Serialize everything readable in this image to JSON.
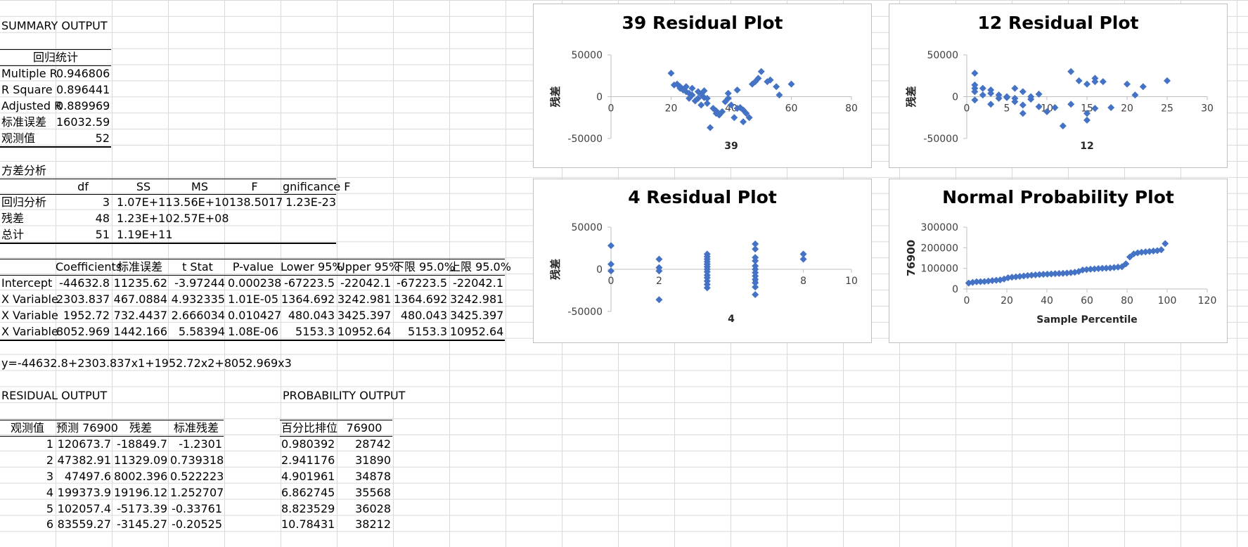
{
  "summary_title": "SUMMARY OUTPUT",
  "regression_stats": {
    "header": "回归统计",
    "rows": [
      {
        "label": "Multiple R",
        "value": "0.946806"
      },
      {
        "label": "R Square",
        "value": "0.896441"
      },
      {
        "label": "Adjusted R",
        "value": "0.889969"
      },
      {
        "label": "标准误差",
        "value": "16032.59"
      },
      {
        "label": "观测值",
        "value": "52"
      }
    ]
  },
  "anova": {
    "title": "方差分析",
    "headers": [
      "",
      "df",
      "SS",
      "MS",
      "F",
      "gnificance F"
    ],
    "rows": [
      [
        "回归分析",
        "3",
        "1.07E+11",
        "3.56E+10",
        "138.5017",
        "1.23E-23"
      ],
      [
        "残差",
        "48",
        "1.23E+10",
        "2.57E+08",
        "",
        ""
      ],
      [
        "总计",
        "51",
        "1.19E+11",
        "",
        "",
        ""
      ]
    ]
  },
  "coefficients": {
    "headers": [
      "",
      "Coefficients",
      "标准误差",
      "t Stat",
      "P-value",
      "Lower 95%",
      "Upper 95%",
      "下限 95.0%",
      "上限 95.0%"
    ],
    "rows": [
      [
        "Intercept",
        "-44632.8",
        "11235.62",
        "-3.97244",
        "0.000238",
        "-67223.5",
        "-22042.1",
        "-67223.5",
        "-22042.1"
      ],
      [
        "X Variable",
        "2303.837",
        "467.0884",
        "4.932335",
        "1.01E-05",
        "1364.692",
        "3242.981",
        "1364.692",
        "3242.981"
      ],
      [
        "X Variable",
        "1952.72",
        "732.4437",
        "2.666034",
        "0.010427",
        "480.043",
        "3425.397",
        "480.043",
        "3425.397"
      ],
      [
        "X Variable",
        "8052.969",
        "1442.166",
        "5.58394",
        "1.08E-06",
        "5153.3",
        "10952.64",
        "5153.3",
        "10952.64"
      ]
    ]
  },
  "equation": "y=-44632.8+2303.837x1+1952.72x2+8052.969x3",
  "residual_output": {
    "title": "RESIDUAL OUTPUT",
    "headers": [
      "观测值",
      "预测 76900",
      "残差",
      "标准残差"
    ],
    "rows": [
      [
        "1",
        "120673.7",
        "-18849.7",
        "-1.2301"
      ],
      [
        "2",
        "47382.91",
        "11329.09",
        "0.739318"
      ],
      [
        "3",
        "47497.6",
        "8002.396",
        "0.522223"
      ],
      [
        "4",
        "199373.9",
        "19196.12",
        "1.252707"
      ],
      [
        "5",
        "102057.4",
        "-5173.39",
        "-0.33761"
      ],
      [
        "6",
        "83559.27",
        "-3145.27",
        "-0.20525"
      ]
    ]
  },
  "probability_output": {
    "title": "PROBABILITY OUTPUT",
    "headers": [
      "百分比排位",
      "76900"
    ],
    "rows": [
      [
        "0.980392",
        "28742"
      ],
      [
        "2.941176",
        "31890"
      ],
      [
        "4.901961",
        "34878"
      ],
      [
        "6.862745",
        "35568"
      ],
      [
        "8.823529",
        "36028"
      ],
      [
        "10.78431",
        "38212"
      ]
    ]
  },
  "chart_data": [
    {
      "type": "scatter",
      "title": "39 Residual Plot",
      "xlabel": "39",
      "ylabel": "残差",
      "xlim": [
        0,
        80
      ],
      "ylim": [
        -50000,
        50000
      ],
      "xticks": [
        0,
        20,
        40,
        60,
        80
      ],
      "yticks": [
        -50000,
        0,
        50000
      ],
      "color": "#4472c4",
      "points": [
        [
          20,
          28000
        ],
        [
          21,
          14000
        ],
        [
          22,
          15000
        ],
        [
          23,
          12000
        ],
        [
          23,
          10000
        ],
        [
          24,
          8000
        ],
        [
          25,
          6000
        ],
        [
          25,
          12000
        ],
        [
          26,
          4000
        ],
        [
          26,
          -2000
        ],
        [
          27,
          10000
        ],
        [
          27,
          2000
        ],
        [
          28,
          -5000
        ],
        [
          29,
          -2000
        ],
        [
          29,
          6000
        ],
        [
          30,
          -10000
        ],
        [
          30,
          3000
        ],
        [
          31,
          -1000
        ],
        [
          31,
          7000
        ],
        [
          32,
          -8000
        ],
        [
          32,
          -2000
        ],
        [
          33,
          -37000
        ],
        [
          34,
          -14000
        ],
        [
          35,
          -17000
        ],
        [
          35,
          -20000
        ],
        [
          36,
          -22000
        ],
        [
          37,
          -18000
        ],
        [
          38,
          -6000
        ],
        [
          39,
          -2000
        ],
        [
          39,
          4000
        ],
        [
          40,
          -10000
        ],
        [
          41,
          -25000
        ],
        [
          42,
          -14000
        ],
        [
          42,
          8000
        ],
        [
          43,
          -13000
        ],
        [
          44,
          -30000
        ],
        [
          44,
          -16000
        ],
        [
          45,
          -20000
        ],
        [
          46,
          -25000
        ],
        [
          47,
          15000
        ],
        [
          48,
          18000
        ],
        [
          49,
          22000
        ],
        [
          50,
          30000
        ],
        [
          52,
          18000
        ],
        [
          53,
          20000
        ],
        [
          55,
          12000
        ],
        [
          56,
          2000
        ],
        [
          60,
          15000
        ]
      ]
    },
    {
      "type": "scatter",
      "title": "12 Residual Plot",
      "xlabel": "12",
      "ylabel": "残差",
      "xlim": [
        0,
        30
      ],
      "ylim": [
        -50000,
        50000
      ],
      "xticks": [
        0,
        5,
        10,
        15,
        20,
        25,
        30
      ],
      "yticks": [
        -50000,
        0,
        50000
      ],
      "color": "#4472c4",
      "points": [
        [
          1,
          28000
        ],
        [
          1,
          14000
        ],
        [
          1,
          10000
        ],
        [
          1,
          6000
        ],
        [
          1,
          -4000
        ],
        [
          2,
          10000
        ],
        [
          2,
          2000
        ],
        [
          3,
          8000
        ],
        [
          3,
          -9000
        ],
        [
          3,
          4000
        ],
        [
          4,
          2000
        ],
        [
          4,
          -2000
        ],
        [
          5,
          -1000
        ],
        [
          5,
          0
        ],
        [
          6,
          10000
        ],
        [
          6,
          -2000
        ],
        [
          6,
          -6000
        ],
        [
          7,
          6000
        ],
        [
          7,
          -20000
        ],
        [
          7,
          -10000
        ],
        [
          8,
          -3000
        ],
        [
          8,
          0
        ],
        [
          9,
          3000
        ],
        [
          9,
          -12000
        ],
        [
          10,
          -18000
        ],
        [
          11,
          -13000
        ],
        [
          12,
          -35000
        ],
        [
          13,
          30000
        ],
        [
          13,
          -9000
        ],
        [
          14,
          19000
        ],
        [
          15,
          15000
        ],
        [
          15,
          -28000
        ],
        [
          15,
          -20000
        ],
        [
          16,
          22000
        ],
        [
          16,
          18000
        ],
        [
          16,
          -14000
        ],
        [
          17,
          18000
        ],
        [
          18,
          -13000
        ],
        [
          20,
          15000
        ],
        [
          21,
          2000
        ],
        [
          22,
          12000
        ],
        [
          25,
          19000
        ]
      ]
    },
    {
      "type": "scatter",
      "title": "4 Residual Plot",
      "xlabel": "4",
      "ylabel": "残差",
      "xlim": [
        0,
        10
      ],
      "ylim": [
        -50000,
        50000
      ],
      "xticks": [
        0,
        2,
        4,
        6,
        8,
        10
      ],
      "yticks": [
        -50000,
        0,
        50000
      ],
      "color": "#4472c4",
      "points": [
        [
          0,
          28000
        ],
        [
          0,
          6000
        ],
        [
          0,
          -2000
        ],
        [
          2,
          12000
        ],
        [
          2,
          2000
        ],
        [
          2,
          -2000
        ],
        [
          2,
          -36000
        ],
        [
          4,
          18000
        ],
        [
          4,
          15000
        ],
        [
          4,
          12000
        ],
        [
          4,
          9000
        ],
        [
          4,
          6000
        ],
        [
          4,
          3000
        ],
        [
          4,
          0
        ],
        [
          4,
          -3000
        ],
        [
          4,
          -7000
        ],
        [
          4,
          -10000
        ],
        [
          4,
          -14000
        ],
        [
          4,
          -18000
        ],
        [
          4,
          -22000
        ],
        [
          6,
          30000
        ],
        [
          6,
          24000
        ],
        [
          6,
          14000
        ],
        [
          6,
          10000
        ],
        [
          6,
          4000
        ],
        [
          6,
          0
        ],
        [
          6,
          -4000
        ],
        [
          6,
          -8000
        ],
        [
          6,
          -12000
        ],
        [
          6,
          -16000
        ],
        [
          6,
          -21000
        ],
        [
          6,
          -30000
        ],
        [
          8,
          18000
        ],
        [
          8,
          12000
        ]
      ]
    },
    {
      "type": "scatter",
      "title": "Normal Probability Plot",
      "xlabel": "Sample Percentile",
      "ylabel": "76900",
      "xlim": [
        0,
        120
      ],
      "ylim": [
        0,
        300000
      ],
      "xticks": [
        0,
        20,
        40,
        60,
        80,
        100,
        120
      ],
      "yticks": [
        0,
        100000,
        200000,
        300000
      ],
      "color": "#4472c4",
      "points": [
        [
          0.98,
          28742
        ],
        [
          2.94,
          31890
        ],
        [
          4.9,
          34878
        ],
        [
          6.86,
          35568
        ],
        [
          8.82,
          36028
        ],
        [
          10.78,
          38212
        ],
        [
          12.75,
          40500
        ],
        [
          14.71,
          42000
        ],
        [
          16.67,
          44000
        ],
        [
          18.63,
          48000
        ],
        [
          20.59,
          54000
        ],
        [
          22.55,
          57000
        ],
        [
          24.51,
          59000
        ],
        [
          26.47,
          61000
        ],
        [
          28.43,
          63000
        ],
        [
          30.39,
          65000
        ],
        [
          32.35,
          67000
        ],
        [
          34.31,
          68000
        ],
        [
          36.27,
          70000
        ],
        [
          38.24,
          71000
        ],
        [
          40.2,
          72000
        ],
        [
          42.16,
          73000
        ],
        [
          44.12,
          74000
        ],
        [
          46.08,
          75000
        ],
        [
          48.04,
          76000
        ],
        [
          50,
          77000
        ],
        [
          51.96,
          79000
        ],
        [
          53.92,
          81000
        ],
        [
          55.88,
          85000
        ],
        [
          57.84,
          92000
        ],
        [
          59.8,
          94000
        ],
        [
          61.76,
          96000
        ],
        [
          63.73,
          97000
        ],
        [
          65.69,
          99000
        ],
        [
          67.65,
          100000
        ],
        [
          69.61,
          101000
        ],
        [
          71.57,
          102000
        ],
        [
          73.53,
          104000
        ],
        [
          75.49,
          106000
        ],
        [
          77.45,
          108000
        ],
        [
          79.41,
          122000
        ],
        [
          81.37,
          155000
        ],
        [
          83.33,
          170000
        ],
        [
          85.29,
          175000
        ],
        [
          87.25,
          178000
        ],
        [
          89.22,
          180000
        ],
        [
          91.18,
          182000
        ],
        [
          93.14,
          184000
        ],
        [
          95.1,
          186000
        ],
        [
          97.06,
          190000
        ],
        [
          99.02,
          220000
        ]
      ]
    }
  ]
}
